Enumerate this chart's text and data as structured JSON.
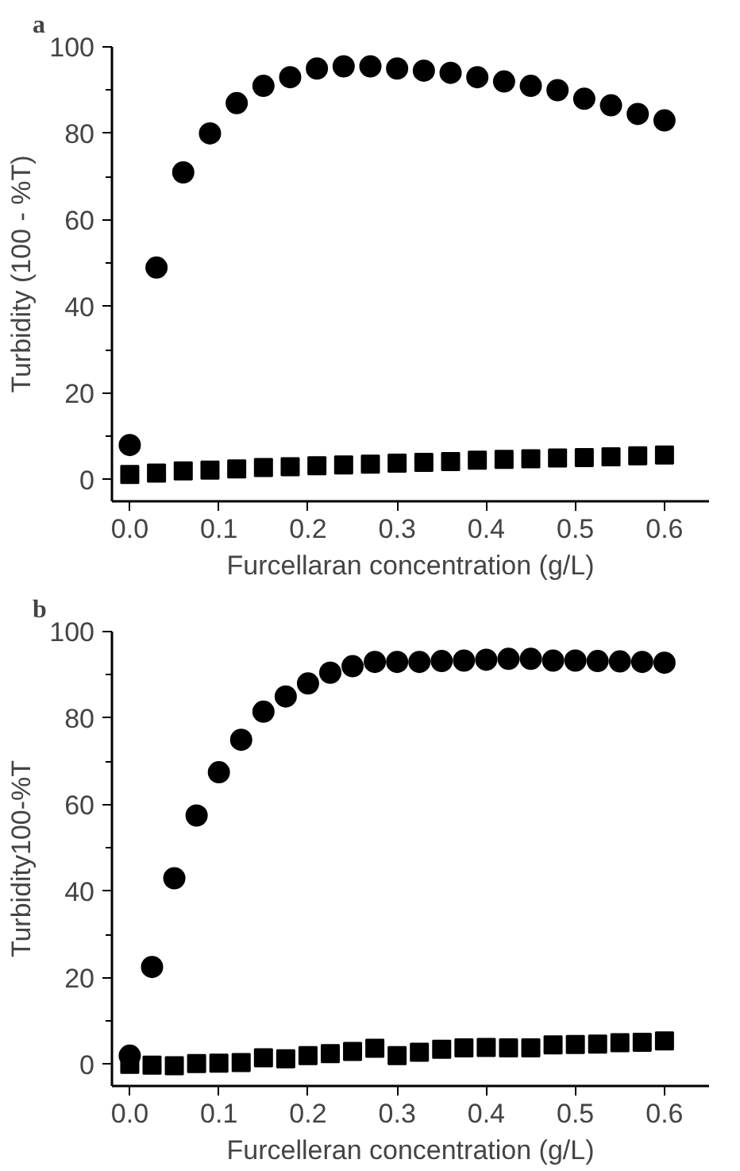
{
  "chart_data": [
    {
      "type": "scatter",
      "title": "a",
      "xlabel": "Furcellaran concentration (g/L)",
      "ylabel": "Turbidity (100 - %T)",
      "x": [
        0.0,
        0.03,
        0.06,
        0.09,
        0.12,
        0.15,
        0.18,
        0.21,
        0.24,
        0.27,
        0.3,
        0.33,
        0.36,
        0.39,
        0.42,
        0.45,
        0.48,
        0.51,
        0.54,
        0.57,
        0.6
      ],
      "series": [
        {
          "color": "#000000",
          "marker": "circle",
          "values": [
            8,
            49,
            71,
            80,
            87,
            91,
            93,
            95,
            95.5,
            95.5,
            95,
            94.5,
            94,
            93,
            92,
            91,
            90,
            88,
            86.5,
            84.5,
            83
          ]
        },
        {
          "color": "#000000",
          "marker": "square",
          "values": [
            1.2,
            1.5,
            2,
            2.2,
            2.5,
            2.8,
            3,
            3.2,
            3.4,
            3.6,
            3.8,
            4,
            4.2,
            4.5,
            4.7,
            4.8,
            5,
            5.1,
            5.3,
            5.5,
            5.7
          ]
        }
      ],
      "xlim": [
        -0.02,
        0.65
      ],
      "ylim": [
        -5,
        100
      ],
      "xticks": [
        {
          "value": 0,
          "label": "0.0"
        },
        0.1,
        0.2,
        0.3,
        0.4,
        0.5,
        0.6
      ],
      "yticks": [
        0,
        {
          "value": 10,
          "label": null
        },
        20,
        {
          "value": 30,
          "label": null
        },
        40,
        {
          "value": 50,
          "label": null
        },
        60,
        {
          "value": 70,
          "label": null
        },
        80,
        {
          "value": 90,
          "label": null
        },
        100
      ],
      "grid": false
    },
    {
      "type": "scatter",
      "title": "b",
      "xlabel": "Furcelleran concentration (g/L)",
      "ylabel": "Turbidity100-%T",
      "x": [
        0.0,
        0.025,
        0.05,
        0.075,
        0.1,
        0.125,
        0.15,
        0.175,
        0.2,
        0.225,
        0.25,
        0.275,
        0.3,
        0.325,
        0.35,
        0.375,
        0.4,
        0.425,
        0.45,
        0.475,
        0.5,
        0.525,
        0.55,
        0.575,
        0.6
      ],
      "series": [
        {
          "color": "#000000",
          "marker": "circle",
          "values": [
            2,
            22.5,
            43,
            57.5,
            67.5,
            75,
            81.5,
            85,
            88,
            90.5,
            92,
            93,
            93,
            93,
            93.2,
            93.3,
            93.5,
            93.7,
            93.7,
            93.3,
            93.3,
            93.2,
            93.1,
            93,
            92.8
          ]
        },
        {
          "color": "#000000",
          "marker": "square",
          "values": [
            0,
            -0.2,
            -0.3,
            0.2,
            0.3,
            0.4,
            1.5,
            1.3,
            2,
            2.5,
            3,
            3.7,
            2,
            2.8,
            3.5,
            3.8,
            3.9,
            3.8,
            3.8,
            4.5,
            4.6,
            4.7,
            5,
            5.1,
            5.4
          ]
        }
      ],
      "xlim": [
        -0.02,
        0.65
      ],
      "ylim": [
        -5,
        100
      ],
      "xticks": [
        {
          "value": 0,
          "label": "0.0"
        },
        0.1,
        0.2,
        0.3,
        0.4,
        0.5,
        0.6
      ],
      "yticks": [
        0,
        {
          "value": 10,
          "label": null
        },
        20,
        {
          "value": 30,
          "label": null
        },
        40,
        {
          "value": 50,
          "label": null
        },
        60,
        {
          "value": 70,
          "label": null
        },
        80,
        {
          "value": 90,
          "label": null
        },
        100
      ],
      "grid": false
    }
  ]
}
